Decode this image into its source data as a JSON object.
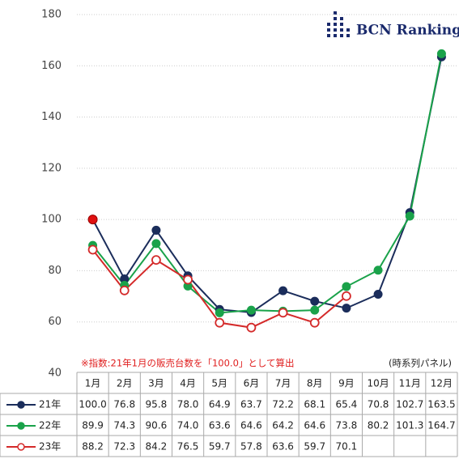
{
  "chart_data": {
    "type": "line",
    "logo": "BCN Ranking",
    "annotation": "※指数:21年1月の販売台数を「100.0」として算出",
    "annotation_right": "(時系列パネル)",
    "categories": [
      "1月",
      "2月",
      "3月",
      "4月",
      "5月",
      "6月",
      "7月",
      "8月",
      "9月",
      "10月",
      "11月",
      "12月"
    ],
    "series": [
      {
        "name": "21年",
        "color": "#1b2d5b",
        "marker": "filled",
        "values": [
          100.0,
          76.8,
          95.8,
          78.0,
          64.9,
          63.7,
          72.2,
          68.1,
          65.4,
          70.8,
          102.7,
          163.5
        ],
        "value_labels": [
          "100.0",
          "76.8",
          "95.8",
          "78.0",
          "64.9",
          "63.7",
          "72.2",
          "68.1",
          "65.4",
          "70.8",
          "102.7",
          "163.5"
        ]
      },
      {
        "name": "22年",
        "color": "#1aa24a",
        "marker": "filled",
        "values": [
          89.9,
          74.3,
          90.6,
          74.0,
          63.6,
          64.6,
          64.2,
          64.6,
          73.8,
          80.2,
          101.3,
          164.7
        ],
        "value_labels": [
          "89.9",
          "74.3",
          "90.6",
          "74.0",
          "63.6",
          "64.6",
          "64.2",
          "64.6",
          "73.8",
          "80.2",
          "101.3",
          "164.7"
        ]
      },
      {
        "name": "23年",
        "color": "#d42a2a",
        "marker": "hollow",
        "values": [
          88.2,
          72.3,
          84.2,
          76.5,
          59.7,
          57.8,
          63.6,
          59.7,
          70.1,
          null,
          null,
          null
        ],
        "value_labels": [
          "88.2",
          "72.3",
          "84.2",
          "76.5",
          "59.7",
          "57.8",
          "63.6",
          "59.7",
          "70.1",
          null,
          null,
          null
        ]
      }
    ],
    "highlight_color": "#e01010",
    "ylim": [
      40,
      180
    ],
    "yticks": [
      40,
      60,
      80,
      100,
      120,
      140,
      160,
      180
    ],
    "grid": true
  }
}
